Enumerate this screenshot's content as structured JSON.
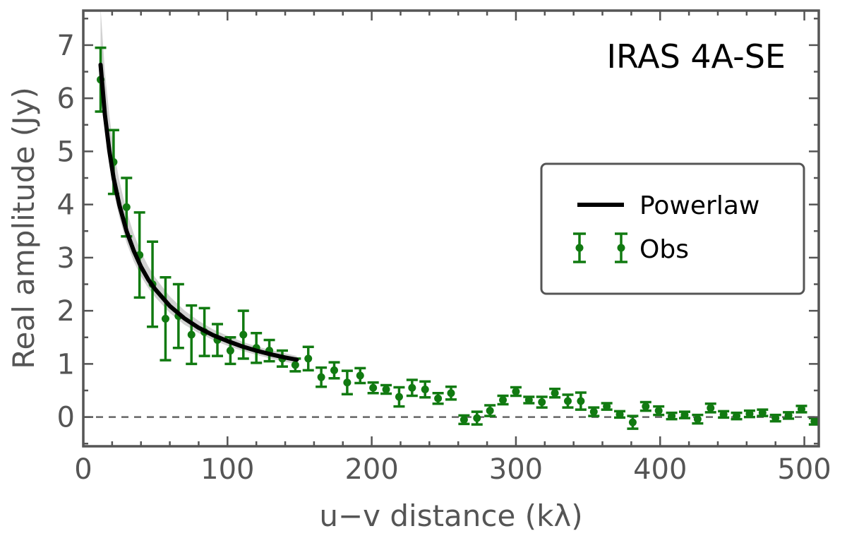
{
  "chart_data": {
    "type": "scatter",
    "title": "IRAS 4A-SE",
    "xlabel": "u−v distance (kλ)",
    "ylabel": "Real amplitude (Jy)",
    "xlim": [
      0,
      510
    ],
    "ylim": [
      -0.55,
      7.65
    ],
    "xticks": [
      0,
      100,
      200,
      300,
      400,
      500
    ],
    "yticks": [
      0,
      1,
      2,
      3,
      4,
      5,
      6,
      7
    ],
    "grid": false,
    "reference_line": {
      "y": 0,
      "style": "dashed"
    },
    "legend": {
      "position": "center-right",
      "entries": [
        "Powerlaw",
        "Obs"
      ]
    },
    "series": [
      {
        "name": "Obs",
        "kind": "errorbar",
        "color": "#117a11",
        "points": [
          {
            "x": 12,
            "y": 6.35,
            "err": 0.6
          },
          {
            "x": 21,
            "y": 4.8,
            "err": 0.6
          },
          {
            "x": 30,
            "y": 3.95,
            "err": 0.55
          },
          {
            "x": 39,
            "y": 3.05,
            "err": 0.8
          },
          {
            "x": 48,
            "y": 2.5,
            "err": 0.8
          },
          {
            "x": 57,
            "y": 1.85,
            "err": 0.78
          },
          {
            "x": 66,
            "y": 1.9,
            "err": 0.6
          },
          {
            "x": 75,
            "y": 1.55,
            "err": 0.55
          },
          {
            "x": 84,
            "y": 1.6,
            "err": 0.45
          },
          {
            "x": 93,
            "y": 1.45,
            "err": 0.3
          },
          {
            "x": 102,
            "y": 1.25,
            "err": 0.25
          },
          {
            "x": 111,
            "y": 1.55,
            "err": 0.45
          },
          {
            "x": 120,
            "y": 1.3,
            "err": 0.28
          },
          {
            "x": 129,
            "y": 1.25,
            "err": 0.2
          },
          {
            "x": 138,
            "y": 1.1,
            "err": 0.15
          },
          {
            "x": 147,
            "y": 0.98,
            "err": 0.12
          },
          {
            "x": 156,
            "y": 1.1,
            "err": 0.22
          },
          {
            "x": 165,
            "y": 0.75,
            "err": 0.18
          },
          {
            "x": 174,
            "y": 0.88,
            "err": 0.15
          },
          {
            "x": 183,
            "y": 0.65,
            "err": 0.22
          },
          {
            "x": 192,
            "y": 0.78,
            "err": 0.14
          },
          {
            "x": 201,
            "y": 0.55,
            "err": 0.1
          },
          {
            "x": 210,
            "y": 0.52,
            "err": 0.08
          },
          {
            "x": 219,
            "y": 0.38,
            "err": 0.18
          },
          {
            "x": 228,
            "y": 0.55,
            "err": 0.15
          },
          {
            "x": 237,
            "y": 0.52,
            "err": 0.15
          },
          {
            "x": 246,
            "y": 0.35,
            "err": 0.1
          },
          {
            "x": 255,
            "y": 0.45,
            "err": 0.12
          },
          {
            "x": 264,
            "y": -0.05,
            "err": 0.08
          },
          {
            "x": 273,
            "y": -0.02,
            "err": 0.12
          },
          {
            "x": 282,
            "y": 0.12,
            "err": 0.1
          },
          {
            "x": 291,
            "y": 0.32,
            "err": 0.08
          },
          {
            "x": 300,
            "y": 0.48,
            "err": 0.08
          },
          {
            "x": 309,
            "y": 0.32,
            "err": 0.06
          },
          {
            "x": 318,
            "y": 0.28,
            "err": 0.1
          },
          {
            "x": 327,
            "y": 0.45,
            "err": 0.08
          },
          {
            "x": 336,
            "y": 0.3,
            "err": 0.12
          },
          {
            "x": 345,
            "y": 0.3,
            "err": 0.16
          },
          {
            "x": 354,
            "y": 0.1,
            "err": 0.08
          },
          {
            "x": 363,
            "y": 0.2,
            "err": 0.06
          },
          {
            "x": 372,
            "y": 0.05,
            "err": 0.06
          },
          {
            "x": 381,
            "y": -0.1,
            "err": 0.12
          },
          {
            "x": 390,
            "y": 0.2,
            "err": 0.08
          },
          {
            "x": 399,
            "y": 0.12,
            "err": 0.08
          },
          {
            "x": 408,
            "y": 0.02,
            "err": 0.06
          },
          {
            "x": 417,
            "y": 0.04,
            "err": 0.06
          },
          {
            "x": 426,
            "y": -0.04,
            "err": 0.08
          },
          {
            "x": 435,
            "y": 0.17,
            "err": 0.08
          },
          {
            "x": 444,
            "y": 0.05,
            "err": 0.06
          },
          {
            "x": 453,
            "y": 0.02,
            "err": 0.06
          },
          {
            "x": 462,
            "y": 0.06,
            "err": 0.06
          },
          {
            "x": 471,
            "y": 0.08,
            "err": 0.06
          },
          {
            "x": 480,
            "y": -0.02,
            "err": 0.06
          },
          {
            "x": 489,
            "y": 0.03,
            "err": 0.06
          },
          {
            "x": 498,
            "y": 0.15,
            "err": 0.06
          },
          {
            "x": 507,
            "y": -0.08,
            "err": 0.06
          }
        ]
      },
      {
        "name": "Powerlaw",
        "kind": "line",
        "color": "#000000",
        "x": [
          12,
          15,
          18,
          21,
          25,
          30,
          35,
          40,
          45,
          50,
          60,
          70,
          80,
          90,
          100,
          110,
          120,
          130,
          140,
          148
        ],
        "y": [
          6.63,
          5.69,
          5.02,
          4.5,
          3.99,
          3.5,
          3.13,
          2.83,
          2.59,
          2.4,
          2.09,
          1.86,
          1.68,
          1.54,
          1.43,
          1.33,
          1.25,
          1.18,
          1.12,
          1.08
        ],
        "band_lower": [
          6.3,
          5.4,
          4.75,
          4.25,
          3.76,
          3.28,
          2.93,
          2.65,
          2.43,
          2.25,
          1.96,
          1.74,
          1.58,
          1.45,
          1.34,
          1.25,
          1.17,
          1.1,
          1.04,
          1.0
        ],
        "band_upper": [
          7.7,
          6.5,
          5.7,
          5.05,
          4.45,
          3.88,
          3.45,
          3.11,
          2.84,
          2.62,
          2.27,
          2.01,
          1.81,
          1.65,
          1.53,
          1.42,
          1.33,
          1.26,
          1.2,
          1.15
        ],
        "band_color": "#999999"
      }
    ]
  }
}
